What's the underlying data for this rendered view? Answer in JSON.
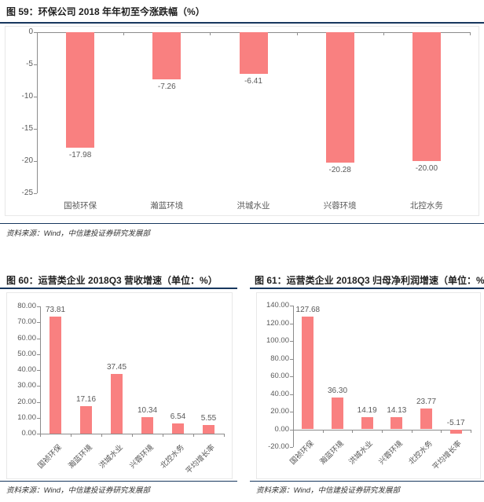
{
  "figures": [
    {
      "id": "59",
      "title": "图 59：环保公司 2018 年年初至今涨跌幅（%）",
      "source": "资料来源：Wind，中信建投证券研究发展部"
    },
    {
      "id": "60",
      "title": "图 60：运营类企业 2018Q3 营收增速（单位：%）",
      "source": "资料来源：Wind，中信建投证券研究发展部"
    },
    {
      "id": "61",
      "title": "图 61：运营类企业 2018Q3 归母净利润增速（单位：%）",
      "source": "资料来源：Wind，中信建投证券研究发展部"
    }
  ],
  "colors": {
    "bar": "#F98080",
    "accent_line": "#17375E",
    "axis_line": "#8c8c8c",
    "label_text": "#595959"
  },
  "chart_data": [
    {
      "type": "bar",
      "title": "环保公司 2018 年年初至今涨跌幅 (%)",
      "categories": [
        "国祯环保",
        "瀚蓝环境",
        "洪城水业",
        "兴蓉环境",
        "北控水务"
      ],
      "values": [
        -17.98,
        -7.26,
        -6.41,
        -20.28,
        -20.0
      ],
      "value_labels": [
        "-17.98",
        "-7.26",
        "-6.41",
        "-20.28",
        "-20.00"
      ],
      "ylim": [
        -25,
        0
      ],
      "ytick_labels": [
        "0",
        "-5",
        "-10",
        "-15",
        "-20",
        "-25"
      ],
      "grid": false,
      "legend": null,
      "bar_color": "#F98080"
    },
    {
      "type": "bar",
      "title": "运营类企业 2018Q3 营收增速（单位：%）",
      "categories": [
        "国祯环保",
        "瀚蓝环境",
        "洪城水业",
        "兴蓉环境",
        "北控水务",
        "平均增长率"
      ],
      "values": [
        73.81,
        17.16,
        37.45,
        10.34,
        6.54,
        5.55
      ],
      "value_labels": [
        "73.81",
        "17.16",
        "37.45",
        "10.34",
        "6.54",
        "5.55"
      ],
      "ylim": [
        0,
        80
      ],
      "ytick_labels": [
        "80.00",
        "70.00",
        "60.00",
        "50.00",
        "40.00",
        "30.00",
        "20.00",
        "10.00",
        "0.00"
      ],
      "grid": false,
      "legend": null,
      "bar_color": "#F98080"
    },
    {
      "type": "bar",
      "title": "运营类企业 2018Q3 归母净利润增速（单位：%）",
      "categories": [
        "国祯环保",
        "瀚蓝环境",
        "洪城水业",
        "兴蓉环境",
        "北控水务",
        "平均增长率"
      ],
      "values": [
        127.68,
        36.3,
        14.19,
        14.13,
        23.77,
        -5.17
      ],
      "value_labels": [
        "127.68",
        "36.30",
        "14.19",
        "14.13",
        "23.77",
        "-5.17"
      ],
      "ylim": [
        -20,
        140
      ],
      "ytick_labels": [
        "140.00",
        "120.00",
        "100.00",
        "80.00",
        "60.00",
        "40.00",
        "20.00",
        "0.00",
        "-20.00"
      ],
      "grid": false,
      "legend": null,
      "bar_color": "#F98080"
    }
  ]
}
